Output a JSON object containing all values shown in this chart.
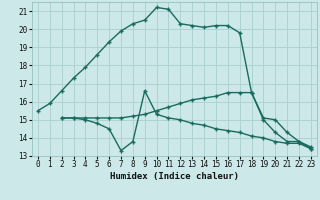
{
  "xlabel": "Humidex (Indice chaleur)",
  "bg_color": "#cce8e8",
  "grid_color": "#aad0d0",
  "line_color": "#1a6b5f",
  "xlim": [
    -0.5,
    23.5
  ],
  "ylim": [
    13,
    21.5
  ],
  "xticks": [
    0,
    1,
    2,
    3,
    4,
    5,
    6,
    7,
    8,
    9,
    10,
    11,
    12,
    13,
    14,
    15,
    16,
    17,
    18,
    19,
    20,
    21,
    22,
    23
  ],
  "yticks": [
    13,
    14,
    15,
    16,
    17,
    18,
    19,
    20,
    21
  ],
  "curve1_x": [
    0,
    1,
    2,
    3,
    4,
    5,
    6,
    7,
    8,
    9,
    10,
    11,
    12,
    13,
    14,
    15,
    16,
    17,
    18,
    19,
    20,
    21,
    22,
    23
  ],
  "curve1_y": [
    15.5,
    15.9,
    16.6,
    17.3,
    17.9,
    18.6,
    19.3,
    19.9,
    20.3,
    20.5,
    21.2,
    21.1,
    20.3,
    20.2,
    20.1,
    20.2,
    20.2,
    19.8,
    16.5,
    15.0,
    14.3,
    13.8,
    13.8,
    13.4
  ],
  "curve2_x": [
    2,
    3,
    4,
    5,
    6,
    7,
    8,
    9,
    10,
    11,
    12,
    13,
    14,
    15,
    16,
    17,
    18,
    19,
    20,
    21,
    22,
    23
  ],
  "curve2_y": [
    15.1,
    15.1,
    15.1,
    15.1,
    15.1,
    15.1,
    15.2,
    15.3,
    15.5,
    15.7,
    15.9,
    16.1,
    16.2,
    16.3,
    16.5,
    16.5,
    16.5,
    15.1,
    15.0,
    14.3,
    13.8,
    13.5
  ],
  "curve3_x": [
    2,
    3,
    4,
    5,
    6,
    7,
    8,
    9,
    10,
    11,
    12,
    13,
    14,
    15,
    16,
    17,
    18,
    19,
    20,
    21,
    22,
    23
  ],
  "curve3_y": [
    15.1,
    15.1,
    15.0,
    14.8,
    14.5,
    13.3,
    13.8,
    16.6,
    15.3,
    15.1,
    15.0,
    14.8,
    14.7,
    14.5,
    14.4,
    14.3,
    14.1,
    14.0,
    13.8,
    13.7,
    13.7,
    13.4
  ]
}
